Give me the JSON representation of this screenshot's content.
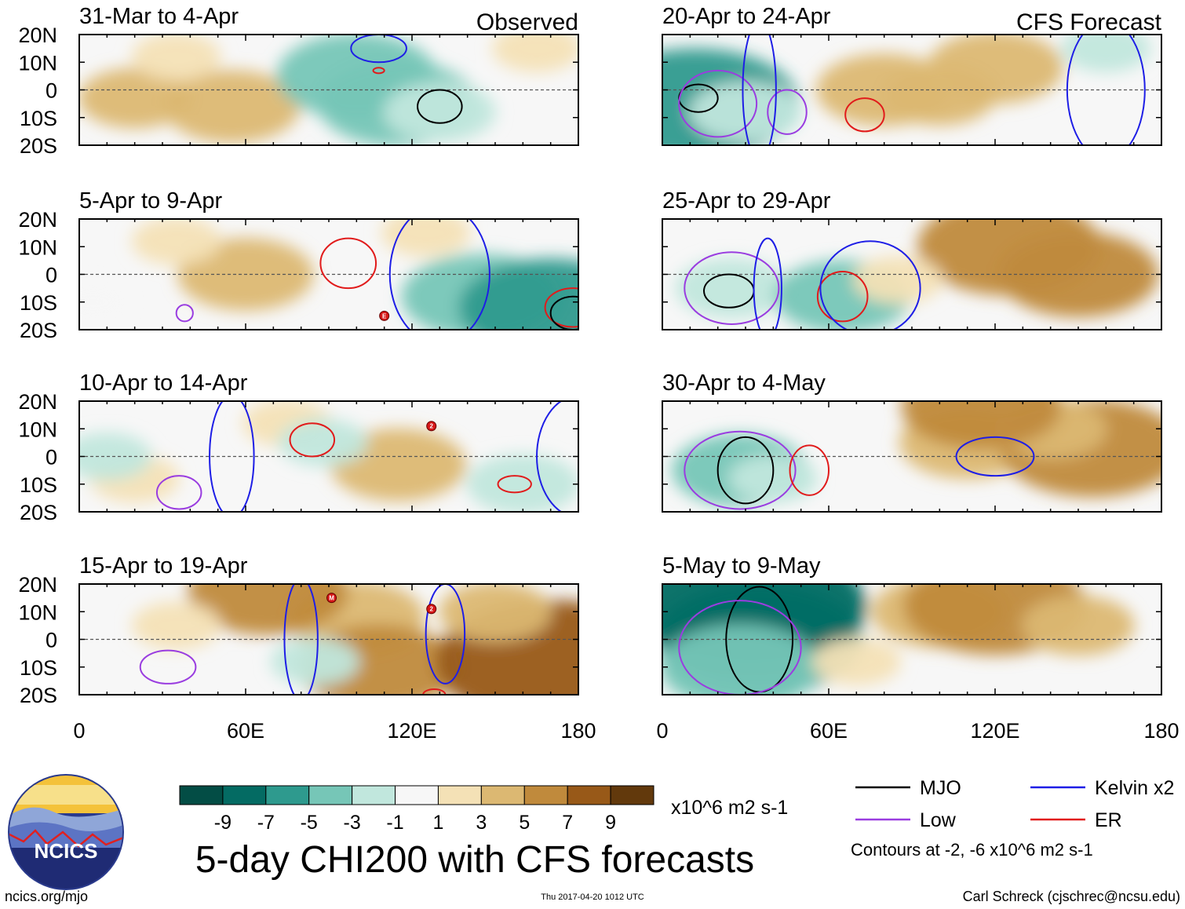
{
  "chart_data": {
    "type": "heatmap",
    "title": "5-day CHI200 with CFS forecasts",
    "variable": "CHI200",
    "units": "x10^6 m2 s-1",
    "xlabel": "",
    "ylabel": "",
    "xlim": [
      0,
      180
    ],
    "ylim": [
      -20,
      20
    ],
    "x_ticks": [
      "0",
      "60E",
      "120E",
      "180"
    ],
    "y_ticks": [
      "20N",
      "10N",
      "0",
      "10S",
      "20S"
    ],
    "columns": [
      {
        "label": "Observed",
        "panels": [
          {
            "period": "31-Mar to 4-Apr",
            "anomalies": [
              [
                20,
                -3,
                3
              ],
              [
                55,
                -6,
                4
              ],
              [
                100,
                5,
                -5
              ],
              [
                115,
                -5,
                -5
              ],
              [
                130,
                -8,
                -3
              ],
              [
                165,
                15,
                2
              ],
              [
                35,
                12,
                2
              ]
            ],
            "contours": [
              {
                "type": "MJO",
                "lon": 130,
                "lat": -6,
                "rlon": 8,
                "rlat": 6
              },
              {
                "type": "Kelvin x2",
                "lon": 108,
                "lat": 15,
                "rlon": 10,
                "rlat": 5
              },
              {
                "type": "ER",
                "lon": 108,
                "lat": 7,
                "rlon": 2,
                "rlat": 1
              }
            ],
            "storms": []
          },
          {
            "period": "5-Apr to 9-Apr",
            "anomalies": [
              [
                60,
                0,
                4
              ],
              [
                35,
                12,
                2
              ],
              [
                125,
                15,
                2
              ],
              [
                145,
                -8,
                -5
              ],
              [
                170,
                -12,
                -6
              ],
              [
                5,
                -10,
                -1
              ]
            ],
            "contours": [
              {
                "type": "ER",
                "lon": 97,
                "lat": 4,
                "rlon": 10,
                "rlat": 9
              },
              {
                "type": "ER",
                "lon": 178,
                "lat": -12,
                "rlon": 10,
                "rlat": 7
              },
              {
                "type": "MJO",
                "lon": 178,
                "lat": -14,
                "rlon": 8,
                "rlat": 6
              },
              {
                "type": "Kelvin x2",
                "lon": 130,
                "lat": 0,
                "rlon": 18,
                "rlat": 25
              },
              {
                "type": "Low",
                "lon": 38,
                "lat": -14,
                "rlon": 3,
                "rlat": 3
              }
            ],
            "storms": [
              {
                "lon": 110,
                "lat": -15,
                "id": "E"
              }
            ]
          },
          {
            "period": "10-Apr to 14-Apr",
            "anomalies": [
              [
                115,
                -3,
                4
              ],
              [
                75,
                12,
                2
              ],
              [
                20,
                -8,
                2
              ],
              [
                160,
                -10,
                -3
              ],
              [
                88,
                5,
                -2
              ],
              [
                10,
                0,
                -2
              ]
            ],
            "contours": [
              {
                "type": "ER",
                "lon": 84,
                "lat": 6,
                "rlon": 8,
                "rlat": 6
              },
              {
                "type": "ER",
                "lon": 157,
                "lat": -10,
                "rlon": 6,
                "rlat": 3
              },
              {
                "type": "Kelvin x2",
                "lon": 180,
                "lat": 0,
                "rlon": 15,
                "rlat": 22
              },
              {
                "type": "Kelvin x2",
                "lon": 55,
                "lat": 0,
                "rlon": 8,
                "rlat": 22
              },
              {
                "type": "Low",
                "lon": 36,
                "lat": -13,
                "rlon": 8,
                "rlat": 6
              }
            ],
            "storms": [
              {
                "lon": 127,
                "lat": 11,
                "id": "2"
              }
            ]
          },
          {
            "period": "15-Apr to 19-Apr",
            "anomalies": [
              [
                100,
                8,
                4
              ],
              [
                68,
                17,
                5
              ],
              [
                108,
                -10,
                5
              ],
              [
                170,
                -8,
                8
              ],
              [
                35,
                5,
                2
              ],
              [
                85,
                -8,
                -2
              ],
              [
                150,
                10,
                3
              ]
            ],
            "contours": [
              {
                "type": "Kelvin x2",
                "lon": 80,
                "lat": 0,
                "rlon": 6,
                "rlat": 22
              },
              {
                "type": "Kelvin x2",
                "lon": 132,
                "lat": 2,
                "rlon": 7,
                "rlat": 18
              },
              {
                "type": "Low",
                "lon": 32,
                "lat": -10,
                "rlon": 10,
                "rlat": 6
              },
              {
                "type": "ER",
                "lon": 128,
                "lat": -20,
                "rlon": 4,
                "rlat": 2
              }
            ],
            "storms": [
              {
                "lon": 91,
                "lat": 15,
                "id": "M"
              },
              {
                "lon": 127,
                "lat": 11,
                "id": "2"
              }
            ]
          }
        ]
      },
      {
        "label": "CFS Forecast",
        "panels": [
          {
            "period": "20-Apr to 24-Apr",
            "anomalies": [
              [
                12,
                -5,
                -7
              ],
              [
                30,
                -8,
                -3
              ],
              [
                80,
                0,
                4
              ],
              [
                120,
                8,
                4
              ],
              [
                160,
                15,
                -2
              ],
              [
                100,
                -2,
                3
              ]
            ],
            "contours": [
              {
                "type": "MJO",
                "lon": 13,
                "lat": -3,
                "rlon": 7,
                "rlat": 5
              },
              {
                "type": "Low",
                "lon": 20,
                "lat": -5,
                "rlon": 14,
                "rlat": 12
              },
              {
                "type": "Low",
                "lon": 45,
                "lat": -8,
                "rlon": 7,
                "rlat": 8
              },
              {
                "type": "ER",
                "lon": 73,
                "lat": -9,
                "rlon": 7,
                "rlat": 6
              },
              {
                "type": "Kelvin x2",
                "lon": 160,
                "lat": 0,
                "rlon": 14,
                "rlat": 25
              },
              {
                "type": "Kelvin x2",
                "lon": 35,
                "lat": 0,
                "rlon": 6,
                "rlat": 25
              }
            ],
            "storms": []
          },
          {
            "period": "25-Apr to 29-Apr",
            "anomalies": [
              [
                25,
                -5,
                -3
              ],
              [
                65,
                -8,
                -4
              ],
              [
                125,
                10,
                6
              ],
              [
                150,
                0,
                5
              ],
              [
                85,
                -2,
                2
              ]
            ],
            "contours": [
              {
                "type": "MJO",
                "lon": 24,
                "lat": -6,
                "rlon": 9,
                "rlat": 6
              },
              {
                "type": "Low",
                "lon": 25,
                "lat": -5,
                "rlon": 17,
                "rlat": 13
              },
              {
                "type": "ER",
                "lon": 65,
                "lat": -8,
                "rlon": 9,
                "rlat": 9
              },
              {
                "type": "Kelvin x2",
                "lon": 75,
                "lat": -5,
                "rlon": 18,
                "rlat": 17
              },
              {
                "type": "Kelvin x2",
                "lon": 38,
                "lat": -5,
                "rlon": 5,
                "rlat": 18
              }
            ],
            "storms": []
          },
          {
            "period": "30-Apr to 4-May",
            "anomalies": [
              [
                28,
                -5,
                -4
              ],
              [
                110,
                5,
                4
              ],
              [
                155,
                3,
                6
              ],
              [
                140,
                10,
                3
              ],
              [
                115,
                18,
                5
              ],
              [
                40,
                -8,
                -2
              ]
            ],
            "contours": [
              {
                "type": "MJO",
                "lon": 30,
                "lat": -5,
                "rlon": 10,
                "rlat": 12
              },
              {
                "type": "Low",
                "lon": 28,
                "lat": -5,
                "rlon": 20,
                "rlat": 14
              },
              {
                "type": "ER",
                "lon": 53,
                "lat": -5,
                "rlon": 7,
                "rlat": 9
              },
              {
                "type": "Kelvin x2",
                "lon": 120,
                "lat": 0,
                "rlon": 14,
                "rlat": 7
              }
            ],
            "storms": []
          },
          {
            "period": "5-May to 9-May",
            "anomalies": [
              [
                35,
                0,
                -7
              ],
              [
                32,
                12,
                -8
              ],
              [
                28,
                -10,
                -5
              ],
              [
                100,
                10,
                4
              ],
              [
                120,
                12,
                6
              ],
              [
                150,
                5,
                3
              ],
              [
                70,
                -8,
                2
              ]
            ],
            "contours": [
              {
                "type": "MJO",
                "lon": 35,
                "lat": 0,
                "rlon": 12,
                "rlat": 19
              },
              {
                "type": "Low",
                "lon": 28,
                "lat": -3,
                "rlon": 22,
                "rlat": 17
              }
            ],
            "storms": []
          }
        ]
      }
    ],
    "colorbar": {
      "colors": [
        "#034d45",
        "#046b63",
        "#2e9a8e",
        "#76c6b7",
        "#c1e7dd",
        "#f7f7f7",
        "#f4e1b6",
        "#dcb872",
        "#c08a3c",
        "#985918",
        "#62390c"
      ],
      "labels": [
        "-9",
        "-7",
        "-5",
        "-3",
        "-1",
        "1",
        "3",
        "5",
        "7",
        "9"
      ],
      "units": "x10^6 m2 s-1"
    },
    "legend": [
      {
        "label": "MJO",
        "color": "#000000"
      },
      {
        "label": "Kelvin x2",
        "color": "#1e1ee6"
      },
      {
        "label": "Low",
        "color": "#9a3de0"
      },
      {
        "label": "ER",
        "color": "#e11b1b"
      }
    ],
    "contour_note": "Contours at -2, -6 x10^6 m2 s-1"
  },
  "footer": {
    "logo_text": "NCICS",
    "site": "ncics.org/mjo",
    "timestamp": "Thu 2017-04-20 1012 UTC",
    "credit": "Carl Schreck (cjschrec@ncsu.edu)"
  }
}
